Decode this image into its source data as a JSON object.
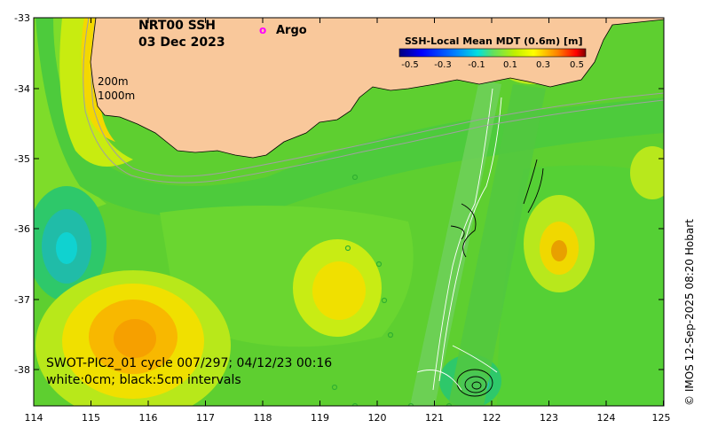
{
  "map": {
    "title_line1": "NRT00 SSH",
    "title_line2": "03 Dec 2023",
    "argo_marker": "o",
    "argo_label": "Argo",
    "depth_label_1": "200m",
    "depth_label_2": "1000m",
    "swot_line1": "SWOT-PIC2_01 cycle 007/297; 04/12/23 00:16",
    "swot_line2": "white:0cm; black:5cm intervals",
    "credit": "© IMOS 12-Sep-2025 08:20 Hobart"
  },
  "legend": {
    "title": "SSH-Local Mean MDT (0.6m) [m]",
    "ticks": [
      "-0.5",
      "-0.3",
      "-0.1",
      "0.1",
      "0.3",
      "0.5"
    ],
    "colors": [
      "#00007f",
      "#0000ff",
      "#0080ff",
      "#00ffff",
      "#80ff80",
      "#ffff00",
      "#ff8000",
      "#ff0000",
      "#7f0000"
    ]
  },
  "axes": {
    "lat_ticks": [
      "-33",
      "-34",
      "-35",
      "-36",
      "-37",
      "-38"
    ],
    "lon_ticks": [
      "114",
      "115",
      "116",
      "117",
      "118",
      "119",
      "120",
      "121",
      "122",
      "123",
      "124",
      "125"
    ]
  },
  "colors": {
    "land": "#f9c89b",
    "field_base": "#5ecf30",
    "argo": "#ff00ff"
  }
}
